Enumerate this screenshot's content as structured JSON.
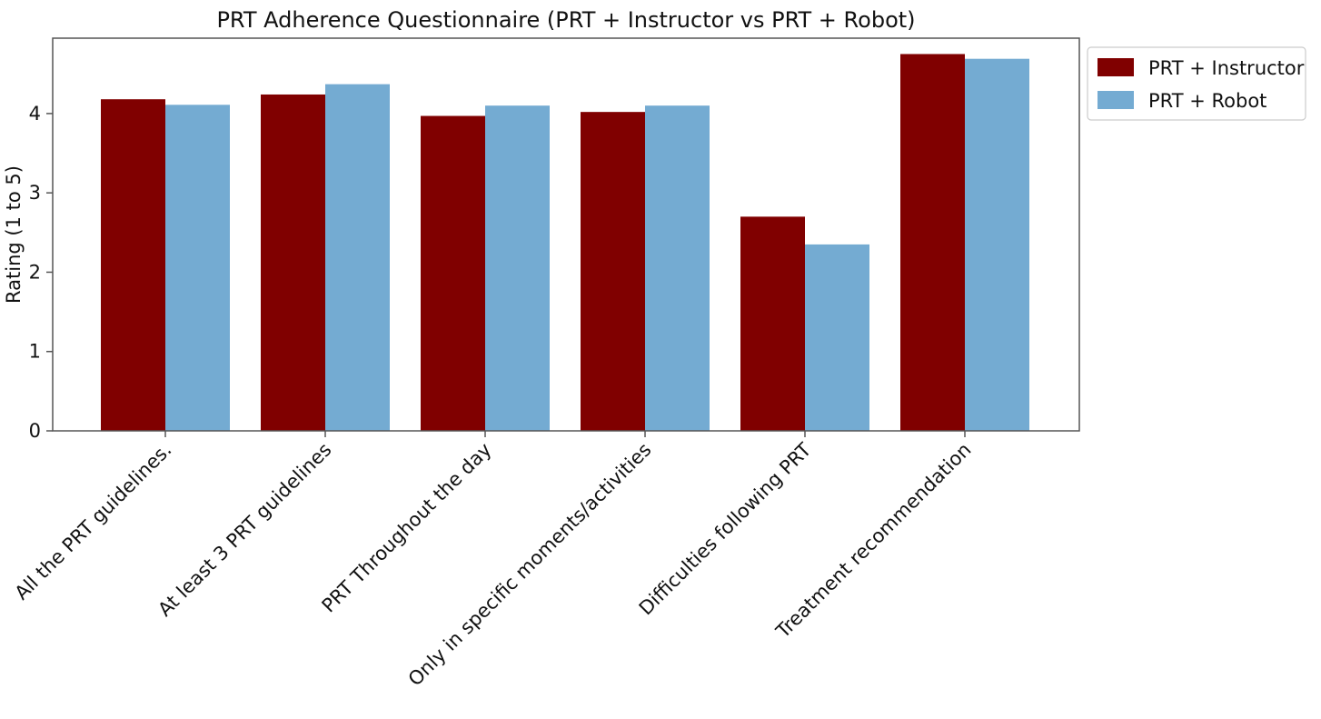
{
  "chart_data": {
    "type": "bar",
    "title": "PRT Adherence Questionnaire (PRT + Instructor vs PRT + Robot)",
    "xlabel": "",
    "ylabel": "Rating (1 to 5)",
    "ylim": [
      0,
      4.95
    ],
    "yticks": [
      0,
      1,
      2,
      3,
      4
    ],
    "grid": false,
    "legend_position": "outside-top-right",
    "categories": [
      "All the PRT guidelines.",
      "At least 3 PRT guidelines",
      "PRT Throughout the day",
      "Only in specific moments/activities",
      "Difficulties following PRT",
      "Treatment recommendation"
    ],
    "series": [
      {
        "name": "PRT + Instructor",
        "color": "#800000",
        "values": [
          4.18,
          4.24,
          3.97,
          4.02,
          2.7,
          4.75
        ]
      },
      {
        "name": "PRT + Robot",
        "color": "#74abd2",
        "values": [
          4.11,
          4.37,
          4.1,
          4.1,
          2.35,
          4.69
        ]
      }
    ]
  }
}
